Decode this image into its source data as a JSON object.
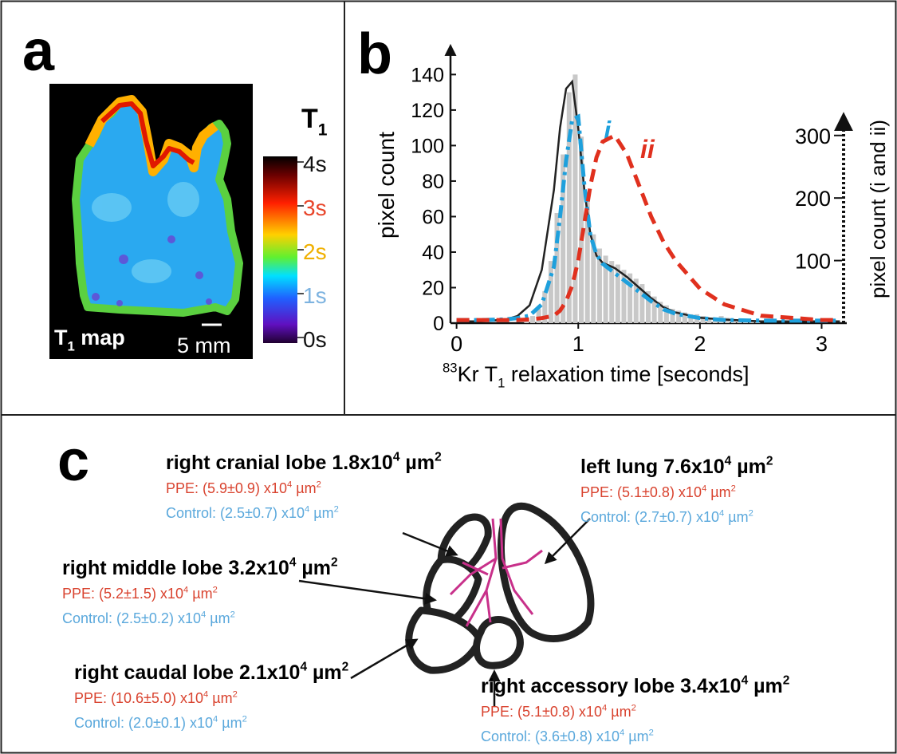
{
  "panel_a": {
    "label": "a",
    "colorbar_title": [
      "T",
      "1"
    ],
    "colorbar_ticks": [
      {
        "label": "4s",
        "color": "#111111"
      },
      {
        "label": "3s",
        "color": "#e8452a"
      },
      {
        "label": "2s",
        "color": "#f0b000"
      },
      {
        "label": "1s",
        "color": "#7db3e0"
      },
      {
        "label": "0s",
        "color": "#111111"
      }
    ],
    "map_label": [
      "T",
      "1",
      " map"
    ],
    "scale_bar": "5 mm"
  },
  "chart_data": {
    "type": "line",
    "label": "b",
    "x_label": [
      "83",
      "Kr T",
      "1",
      " relaxation time [seconds]"
    ],
    "y_label": "pixel count",
    "y2_label": "pixel count (i and ii)",
    "x": [
      0,
      0.2,
      0.4,
      0.5,
      0.6,
      0.7,
      0.8,
      0.85,
      0.9,
      0.95,
      1.0,
      1.05,
      1.1,
      1.15,
      1.2,
      1.3,
      1.4,
      1.5,
      1.6,
      1.7,
      1.8,
      2.0,
      2.2,
      2.5,
      3.0,
      3.15
    ],
    "series": [
      {
        "color": "#222222",
        "dash": "solid",
        "values": [
          1,
          1,
          2,
          4,
          10,
          30,
          75,
          110,
          132,
          136,
          110,
          75,
          50,
          38,
          34,
          31,
          26,
          20,
          14,
          9,
          6,
          3,
          2,
          1,
          1,
          1
        ]
      },
      {
        "name": "i",
        "color": "#1ea0dc",
        "dash": "dashdot",
        "axis": "y2",
        "values": [
          5,
          5,
          6,
          8,
          12,
          30,
          90,
          170,
          260,
          325,
          330,
          220,
          140,
          110,
          95,
          80,
          65,
          50,
          35,
          22,
          15,
          8,
          5,
          4,
          4,
          4
        ]
      },
      {
        "name": "ii",
        "color": "#e0301e",
        "dash": "dashed",
        "axis": "y2",
        "values": [
          5,
          5,
          5,
          5,
          6,
          8,
          12,
          20,
          35,
          60,
          100,
          160,
          220,
          265,
          290,
          300,
          270,
          220,
          170,
          130,
          100,
          55,
          30,
          12,
          5,
          5
        ]
      }
    ],
    "histogram": {
      "color": "#c8c8c8",
      "bins": [
        0.55,
        0.6,
        0.65,
        0.7,
        0.75,
        0.8,
        0.85,
        0.9,
        0.95,
        1.0,
        1.05,
        1.1,
        1.15,
        1.2,
        1.25,
        1.3,
        1.35,
        1.4,
        1.45,
        1.5,
        1.55,
        1.6,
        1.65,
        1.7,
        1.75,
        1.8,
        1.85,
        1.9,
        1.95,
        2.0,
        2.05,
        2.1,
        2.15,
        2.2,
        2.25,
        2.3,
        2.35,
        2.4,
        2.45,
        2.5
      ],
      "counts": [
        2,
        4,
        8,
        18,
        35,
        62,
        95,
        130,
        140,
        105,
        70,
        50,
        42,
        38,
        35,
        33,
        30,
        28,
        25,
        22,
        18,
        15,
        12,
        10,
        8,
        7,
        6,
        5,
        5,
        4,
        3,
        3,
        4,
        3,
        2,
        2,
        1,
        1,
        1
      ]
    },
    "xlim": [
      -0.05,
      3.2
    ],
    "xticks": [
      0,
      1,
      2,
      3
    ],
    "ylim": [
      0,
      155
    ],
    "yticks": [
      0,
      20,
      40,
      60,
      80,
      100,
      120,
      140
    ],
    "y2lim": [
      0,
      440
    ],
    "y2ticks": [
      100,
      200,
      300
    ]
  },
  "panel_c": {
    "label": "c",
    "ppe_color": "#d9432f",
    "control_color": "#5aa8dc",
    "lobes": [
      {
        "name": [
          "right cranial lobe 1.8x10",
          "4",
          " µm",
          "2"
        ],
        "ppe": [
          "PPE: (5.9±0.9) x10",
          "4",
          " µm",
          "2"
        ],
        "control": [
          "Control: (2.5±0.7) x10",
          "4",
          " µm",
          "2"
        ]
      },
      {
        "name": [
          "left lung 7.6x10",
          "4",
          " µm",
          "2"
        ],
        "ppe": [
          "PPE: (5.1±0.8) x10",
          "4",
          " µm",
          "2"
        ],
        "control": [
          "Control: (2.7±0.7) x10",
          "4",
          " µm",
          "2"
        ]
      },
      {
        "name": [
          "right middle lobe 3.2x10",
          "4",
          " µm",
          "2"
        ],
        "ppe": [
          "PPE: (5.2±1.5) x10",
          "4",
          " µm",
          "2"
        ],
        "control": [
          "Control: (2.5±0.2) x10",
          "4",
          " µm",
          "2"
        ]
      },
      {
        "name": [
          "right caudal lobe 2.1x10",
          "4",
          " µm",
          "2"
        ],
        "ppe": [
          "PPE: (10.6±5.0) x10",
          "4",
          " µm",
          "2"
        ],
        "control": [
          "Control: (2.0±0.1) x10",
          "4",
          " µm",
          "2"
        ]
      },
      {
        "name": [
          "right accessory lobe 3.4x10",
          "4",
          " µm",
          "2"
        ],
        "ppe": [
          "PPE: (5.1±0.8) x10",
          "4",
          " µm",
          "2"
        ],
        "control": [
          "Control: (3.6±0.8) x10",
          "4",
          " µm",
          "2"
        ]
      }
    ]
  }
}
